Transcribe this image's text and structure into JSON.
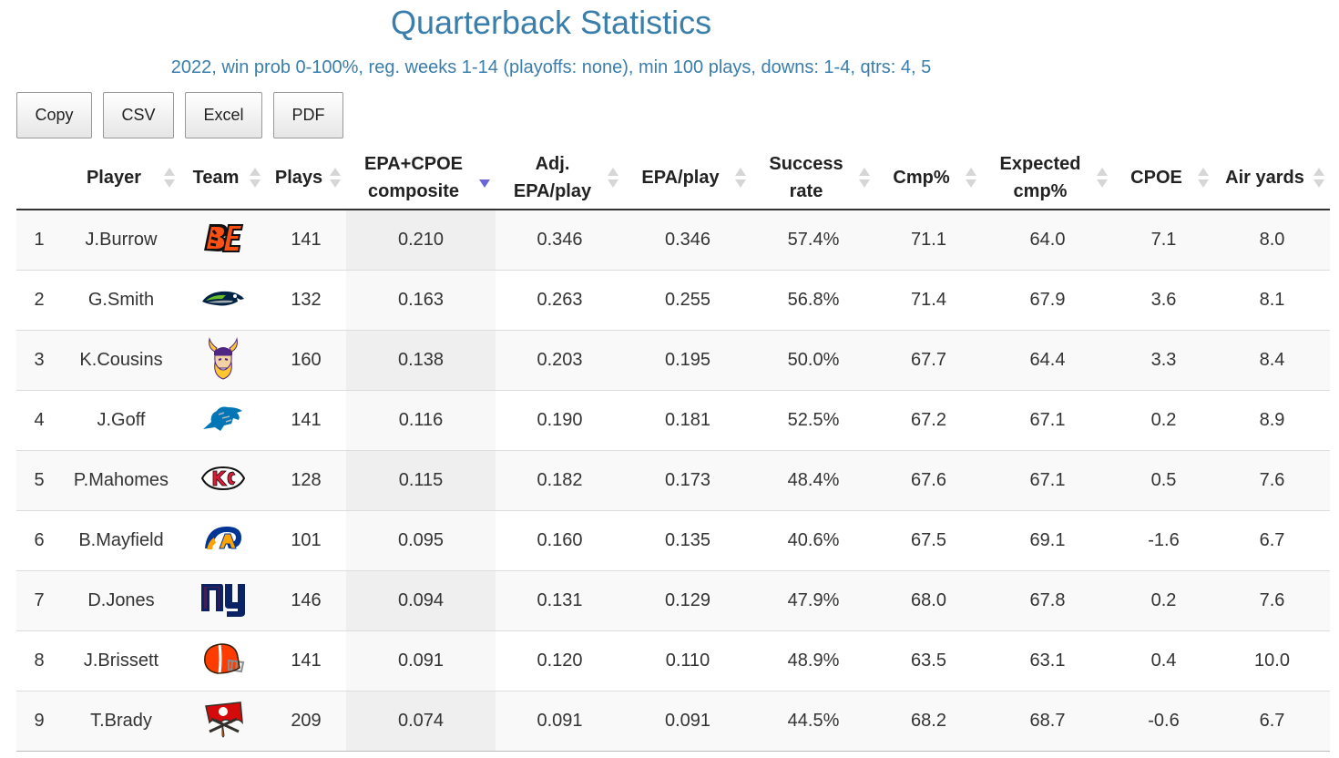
{
  "header": {
    "title": "Quarterback Statistics",
    "subtitle": "2022, win prob 0-100%, reg. weeks 1-14 (playoffs: none), min 100 plays, downs: 1-4, qtrs: 4, 5"
  },
  "toolbar": {
    "buttons": [
      "Copy",
      "CSV",
      "Excel",
      "PDF"
    ]
  },
  "table": {
    "columns": [
      {
        "key": "rank",
        "label": ""
      },
      {
        "key": "player",
        "label": "Player"
      },
      {
        "key": "team",
        "label": "Team"
      },
      {
        "key": "plays",
        "label": "Plays"
      },
      {
        "key": "composite",
        "label": "EPA+CPOE composite"
      },
      {
        "key": "adj_epa",
        "label": "Adj. EPA/play"
      },
      {
        "key": "epa",
        "label": "EPA/play"
      },
      {
        "key": "success",
        "label": "Success rate"
      },
      {
        "key": "cmp",
        "label": "Cmp%"
      },
      {
        "key": "xcmp",
        "label": "Expected cmp%"
      },
      {
        "key": "cpoe",
        "label": "CPOE"
      },
      {
        "key": "air",
        "label": "Air yards"
      }
    ],
    "sorted_column": "composite",
    "sort_direction": "descending",
    "rows": [
      {
        "rank": "1",
        "player": "J.Burrow",
        "team_icon": "bengals-logo-icon",
        "plays": "141",
        "composite": "0.210",
        "adj_epa": "0.346",
        "epa": "0.346",
        "success": "57.4%",
        "cmp": "71.1",
        "xcmp": "64.0",
        "cpoe": "7.1",
        "air": "8.0"
      },
      {
        "rank": "2",
        "player": "G.Smith",
        "team_icon": "seahawks-logo-icon",
        "plays": "132",
        "composite": "0.163",
        "adj_epa": "0.263",
        "epa": "0.255",
        "success": "56.8%",
        "cmp": "71.4",
        "xcmp": "67.9",
        "cpoe": "3.6",
        "air": "8.1"
      },
      {
        "rank": "3",
        "player": "K.Cousins",
        "team_icon": "vikings-logo-icon",
        "plays": "160",
        "composite": "0.138",
        "adj_epa": "0.203",
        "epa": "0.195",
        "success": "50.0%",
        "cmp": "67.7",
        "xcmp": "64.4",
        "cpoe": "3.3",
        "air": "8.4"
      },
      {
        "rank": "4",
        "player": "J.Goff",
        "team_icon": "lions-logo-icon",
        "plays": "141",
        "composite": "0.116",
        "adj_epa": "0.190",
        "epa": "0.181",
        "success": "52.5%",
        "cmp": "67.2",
        "xcmp": "67.1",
        "cpoe": "0.2",
        "air": "8.9"
      },
      {
        "rank": "5",
        "player": "P.Mahomes",
        "team_icon": "chiefs-logo-icon",
        "plays": "128",
        "composite": "0.115",
        "adj_epa": "0.182",
        "epa": "0.173",
        "success": "48.4%",
        "cmp": "67.6",
        "xcmp": "67.1",
        "cpoe": "0.5",
        "air": "7.6"
      },
      {
        "rank": "6",
        "player": "B.Mayfield",
        "team_icon": "rams-logo-icon",
        "plays": "101",
        "composite": "0.095",
        "adj_epa": "0.160",
        "epa": "0.135",
        "success": "40.6%",
        "cmp": "67.5",
        "xcmp": "69.1",
        "cpoe": "-1.6",
        "air": "6.7"
      },
      {
        "rank": "7",
        "player": "D.Jones",
        "team_icon": "giants-logo-icon",
        "plays": "146",
        "composite": "0.094",
        "adj_epa": "0.131",
        "epa": "0.129",
        "success": "47.9%",
        "cmp": "68.0",
        "xcmp": "67.8",
        "cpoe": "0.2",
        "air": "7.6"
      },
      {
        "rank": "8",
        "player": "J.Brissett",
        "team_icon": "browns-logo-icon",
        "plays": "141",
        "composite": "0.091",
        "adj_epa": "0.120",
        "epa": "0.110",
        "success": "48.9%",
        "cmp": "63.5",
        "xcmp": "63.1",
        "cpoe": "0.4",
        "air": "10.0"
      },
      {
        "rank": "9",
        "player": "T.Brady",
        "team_icon": "buccaneers-logo-icon",
        "plays": "209",
        "composite": "0.074",
        "adj_epa": "0.091",
        "epa": "0.091",
        "success": "44.5%",
        "cmp": "68.2",
        "xcmp": "68.7",
        "cpoe": "-0.6",
        "air": "6.7"
      }
    ]
  },
  "colors": {
    "title": "#3a7eac",
    "sort_active": "#6a66d8",
    "sort_inactive": "#d6d6d6"
  }
}
